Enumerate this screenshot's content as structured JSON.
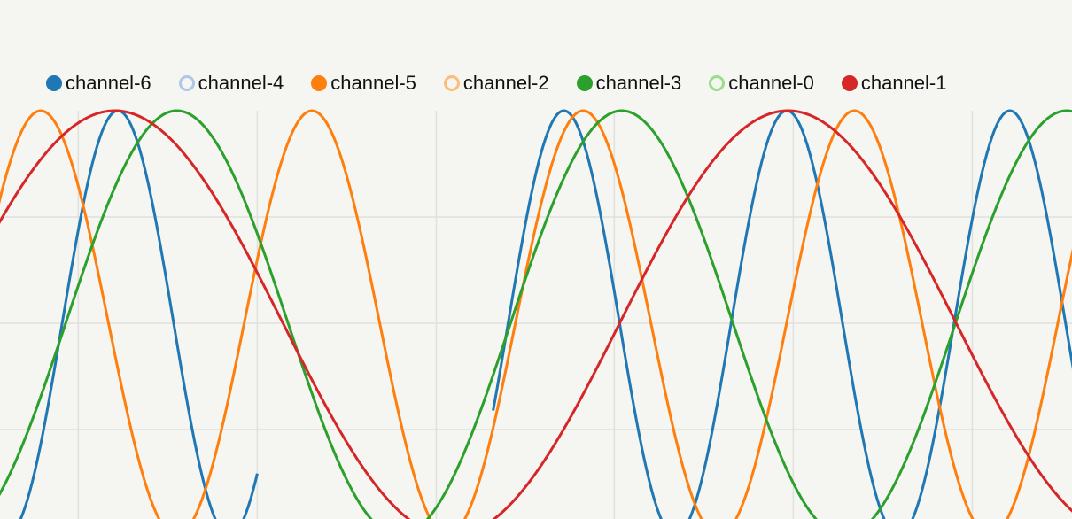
{
  "chart_data": {
    "type": "line",
    "title": "",
    "xlabel": "",
    "ylabel": "",
    "grid": true,
    "legend_position": "top",
    "legend": [
      {
        "name": "channel-6",
        "color": "#1f77b4",
        "filled": true
      },
      {
        "name": "channel-4",
        "color": "#aec7e8",
        "filled": false
      },
      {
        "name": "channel-5",
        "color": "#ff7f0e",
        "filled": true
      },
      {
        "name": "channel-2",
        "color": "#ffbb78",
        "filled": false
      },
      {
        "name": "channel-3",
        "color": "#2ca02c",
        "filled": true
      },
      {
        "name": "channel-0",
        "color": "#98df8a",
        "filled": false
      },
      {
        "name": "channel-1",
        "color": "#d62728",
        "filled": true
      }
    ],
    "series": [
      {
        "name": "channel-6",
        "color": "#1f77b4",
        "shape": "sine",
        "amplitude": 1,
        "period": 2.08,
        "peak_at": 1.1,
        "draw_ranges": [
          [
            -0.2,
            2.4
          ],
          [
            4.6,
            10.5
          ]
        ]
      },
      {
        "name": "channel-5",
        "color": "#ff7f0e",
        "shape": "sine",
        "amplitude": 1,
        "period": 2.53,
        "peak_at": 0.38,
        "draw_ranges": [
          [
            -0.2,
            10.5
          ]
        ]
      },
      {
        "name": "channel-3",
        "color": "#2ca02c",
        "shape": "sine",
        "amplitude": 1,
        "period": 4.15,
        "peak_at": 1.65,
        "draw_ranges": [
          [
            -0.2,
            10.5
          ]
        ]
      },
      {
        "name": "channel-1",
        "color": "#d62728",
        "shape": "sine",
        "amplitude": 1,
        "period": 6.28,
        "peak_at": 7.35,
        "draw_ranges": [
          [
            -0.2,
            10.5
          ]
        ]
      }
    ],
    "xlim": [
      0,
      10.0
    ],
    "ylim": [
      -1,
      1
    ],
    "x_gridlines": [
      0.73,
      2.4,
      4.07,
      5.73,
      7.4,
      9.07
    ],
    "y_gridlines": [
      0.0,
      0.5,
      1.0,
      1.5
    ]
  }
}
